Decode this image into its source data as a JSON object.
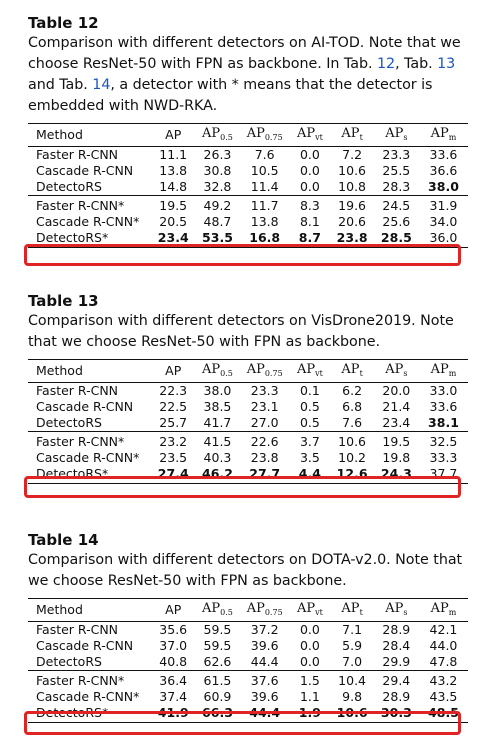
{
  "table12": {
    "title": "Table 12",
    "caption_lines": [
      [
        "Comparison with different detectors on AI-TOD. Note that we"
      ],
      [
        "choose ResNet-50 with FPN as backbone. In Tab. ",
        "12",
        ", Tab. ",
        "13"
      ],
      [
        "and Tab. ",
        "14",
        ", a detector with * means that the detector is"
      ],
      [
        "embedded with NWD-RKA."
      ]
    ],
    "headers": [
      "Method",
      "AP",
      "AP",
      "AP",
      "AP",
      "AP",
      "AP",
      "AP"
    ],
    "header_subs": [
      "",
      "",
      "0.5",
      "0.75",
      "vt",
      "t",
      "s",
      "m"
    ],
    "groups": [
      [
        {
          "method": "Faster R-CNN",
          "values": [
            "11.1",
            "26.3",
            "7.6",
            "0.0",
            "7.2",
            "23.3",
            "33.6"
          ],
          "bold": []
        },
        {
          "method": "Cascade R-CNN",
          "values": [
            "13.8",
            "30.8",
            "10.5",
            "0.0",
            "10.6",
            "25.5",
            "36.6"
          ],
          "bold": []
        },
        {
          "method": "DetectoRS",
          "values": [
            "14.8",
            "32.8",
            "11.4",
            "0.0",
            "10.8",
            "28.3",
            "38.0"
          ],
          "bold": [
            6
          ]
        }
      ],
      [
        {
          "method": "Faster R-CNN*",
          "values": [
            "19.5",
            "49.2",
            "11.7",
            "8.3",
            "19.6",
            "24.5",
            "31.9"
          ],
          "bold": []
        },
        {
          "method": "Cascade R-CNN*",
          "values": [
            "20.5",
            "48.7",
            "13.8",
            "8.1",
            "20.6",
            "25.6",
            "34.0"
          ],
          "bold": []
        },
        {
          "method": "DetectoRS*",
          "values": [
            "23.4",
            "53.5",
            "16.8",
            "8.7",
            "23.8",
            "28.5",
            "36.0"
          ],
          "bold": [
            0,
            1,
            2,
            3,
            4,
            5
          ]
        }
      ]
    ]
  },
  "table13": {
    "title": "Table 13",
    "caption_lines": [
      [
        "Comparison with different detectors on VisDrone2019. Note"
      ],
      [
        "that we choose ResNet-50 with FPN as backbone."
      ]
    ],
    "headers": [
      "Method",
      "AP",
      "AP",
      "AP",
      "AP",
      "AP",
      "AP",
      "AP"
    ],
    "header_subs": [
      "",
      "",
      "0.5",
      "0.75",
      "vt",
      "t",
      "s",
      "m"
    ],
    "groups": [
      [
        {
          "method": "Faster R-CNN",
          "values": [
            "22.3",
            "38.0",
            "23.3",
            "0.1",
            "6.2",
            "20.0",
            "33.0"
          ],
          "bold": []
        },
        {
          "method": "Cascade R-CNN",
          "values": [
            "22.5",
            "38.5",
            "23.1",
            "0.5",
            "6.8",
            "21.4",
            "33.6"
          ],
          "bold": []
        },
        {
          "method": "DetectoRS",
          "values": [
            "25.7",
            "41.7",
            "27.0",
            "0.5",
            "7.6",
            "23.4",
            "38.1"
          ],
          "bold": [
            6
          ]
        }
      ],
      [
        {
          "method": "Faster R-CNN*",
          "values": [
            "23.2",
            "41.5",
            "22.6",
            "3.7",
            "10.6",
            "19.5",
            "32.5"
          ],
          "bold": []
        },
        {
          "method": "Cascade R-CNN*",
          "values": [
            "23.5",
            "40.3",
            "23.8",
            "3.5",
            "10.2",
            "19.8",
            "33.3"
          ],
          "bold": []
        },
        {
          "method": "DetectoRS*",
          "values": [
            "27.4",
            "46.2",
            "27.7",
            "4.4",
            "12.6",
            "24.3",
            "37.7"
          ],
          "bold": [
            0,
            1,
            2,
            3,
            4,
            5
          ]
        }
      ]
    ]
  },
  "table14": {
    "title": "Table 14",
    "caption_lines": [
      [
        "Comparison with different detectors on DOTA-v2.0. Note that"
      ],
      [
        "we choose ResNet-50 with FPN as backbone."
      ]
    ],
    "headers": [
      "Method",
      "AP",
      "AP",
      "AP",
      "AP",
      "AP",
      "AP",
      "AP"
    ],
    "header_subs": [
      "",
      "",
      "0.5",
      "0.75",
      "vt",
      "t",
      "s",
      "m"
    ],
    "groups": [
      [
        {
          "method": "Faster R-CNN",
          "values": [
            "35.6",
            "59.5",
            "37.2",
            "0.0",
            "7.1",
            "28.9",
            "42.1"
          ],
          "bold": []
        },
        {
          "method": "Cascade R-CNN",
          "values": [
            "37.0",
            "59.5",
            "39.6",
            "0.0",
            "5.9",
            "28.4",
            "44.0"
          ],
          "bold": []
        },
        {
          "method": "DetectoRS",
          "values": [
            "40.8",
            "62.6",
            "44.4",
            "0.0",
            "7.0",
            "29.9",
            "47.8"
          ],
          "bold": []
        }
      ],
      [
        {
          "method": "Faster R-CNN*",
          "values": [
            "36.4",
            "61.5",
            "37.6",
            "1.5",
            "10.4",
            "29.4",
            "43.2"
          ],
          "bold": []
        },
        {
          "method": "Cascade R-CNN*",
          "values": [
            "37.4",
            "60.9",
            "39.6",
            "1.1",
            "9.8",
            "28.9",
            "43.5"
          ],
          "bold": []
        },
        {
          "method": "DetectoRS*",
          "values": [
            "41.9",
            "66.3",
            "44.4",
            "1.9",
            "10.6",
            "30.3",
            "48.5"
          ],
          "bold": [
            0,
            1,
            2,
            3,
            4,
            5,
            6
          ]
        }
      ]
    ]
  },
  "colors": {
    "highlight_box": "#e02424",
    "link": "#1a56c4",
    "text": "#111111"
  }
}
